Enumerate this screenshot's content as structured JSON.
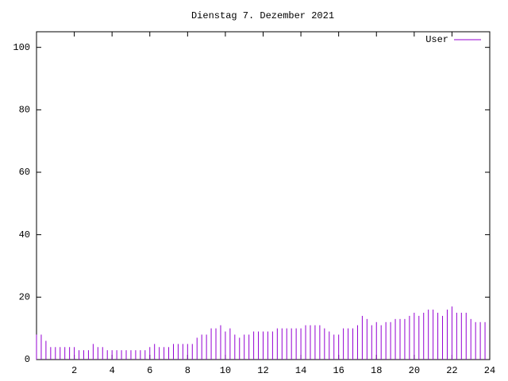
{
  "chart_data": {
    "type": "impulses",
    "title": "Dienstag 7. Dezember 2021",
    "legend": "top right",
    "xlim": [
      0,
      24
    ],
    "xticks": [
      2,
      4,
      6,
      8,
      10,
      12,
      14,
      16,
      18,
      20,
      22,
      24
    ],
    "ylim": [
      0,
      105
    ],
    "yticks": [
      0,
      20,
      40,
      60,
      80,
      100
    ],
    "x": [
      0,
      0.25,
      0.5,
      0.75,
      1,
      1.25,
      1.5,
      1.75,
      2,
      2.25,
      2.5,
      2.75,
      3,
      3.25,
      3.5,
      3.75,
      4,
      4.25,
      4.5,
      4.75,
      5,
      5.25,
      5.5,
      5.75,
      6,
      6.25,
      6.5,
      6.75,
      7,
      7.25,
      7.5,
      7.75,
      8,
      8.25,
      8.5,
      8.75,
      9,
      9.25,
      9.5,
      9.75,
      10,
      10.25,
      10.5,
      10.75,
      11,
      11.25,
      11.5,
      11.75,
      12,
      12.25,
      12.5,
      12.75,
      13,
      13.25,
      13.5,
      13.75,
      14,
      14.25,
      14.5,
      14.75,
      15,
      15.25,
      15.5,
      15.75,
      16,
      16.25,
      16.5,
      16.75,
      17,
      17.25,
      17.5,
      17.75,
      18,
      18.25,
      18.5,
      18.75,
      19,
      19.25,
      19.5,
      19.75,
      20,
      20.25,
      20.5,
      20.75,
      21,
      21.25,
      21.5,
      21.75,
      22,
      22.25,
      22.5,
      22.75,
      23,
      23.25,
      23.5,
      23.75
    ],
    "series": [
      {
        "name": "User",
        "color": "#9400d3",
        "values": [
          8,
          8,
          6,
          4,
          4,
          4,
          4,
          4,
          4,
          3,
          3,
          3,
          5,
          4,
          4,
          3,
          3,
          3,
          3,
          3,
          3,
          3,
          3,
          3,
          4,
          5,
          4,
          4,
          4,
          5,
          5,
          5,
          5,
          5,
          7,
          8,
          8,
          10,
          10,
          11,
          9,
          10,
          8,
          7,
          8,
          8,
          9,
          9,
          9,
          9,
          9,
          10,
          10,
          10,
          10,
          10,
          10,
          11,
          11,
          11,
          11,
          10,
          9,
          8,
          8,
          10,
          10,
          10,
          11,
          14,
          13,
          11,
          12,
          11,
          12,
          12,
          13,
          13,
          13,
          14,
          15,
          14,
          15,
          16,
          16,
          15,
          14,
          16,
          17,
          15,
          15,
          15,
          13,
          12,
          12,
          12
        ]
      }
    ]
  }
}
